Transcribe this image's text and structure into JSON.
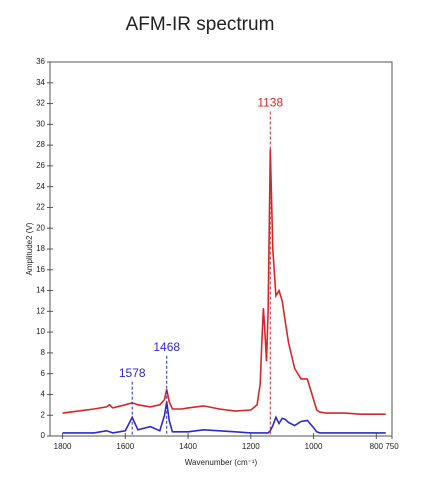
{
  "chart_data": {
    "type": "line",
    "title": "AFM-IR spectrum",
    "x_label": "Wavenumber (cm⁻¹)",
    "y_label": "Amplitude2 (V)",
    "x": [
      1800,
      1750,
      1700,
      1660,
      1650,
      1640,
      1600,
      1578,
      1560,
      1520,
      1490,
      1475,
      1468,
      1460,
      1450,
      1420,
      1400,
      1350,
      1300,
      1250,
      1200,
      1180,
      1170,
      1165,
      1160,
      1155,
      1150,
      1145,
      1138,
      1130,
      1120,
      1110,
      1100,
      1090,
      1080,
      1060,
      1040,
      1020,
      1000,
      990,
      980,
      960,
      900,
      850,
      800,
      770
    ],
    "series": [
      {
        "color": "#d62728",
        "values": [
          2.2,
          2.4,
          2.6,
          2.8,
          3.0,
          2.7,
          3.0,
          3.2,
          3.0,
          2.8,
          3.0,
          3.5,
          4.5,
          3.3,
          2.6,
          2.6,
          2.7,
          2.9,
          2.6,
          2.4,
          2.5,
          3.0,
          5,
          9,
          12.3,
          10,
          7.2,
          12,
          27.6,
          18,
          13.5,
          14,
          13,
          11,
          9,
          6.5,
          5.5,
          5.5,
          3.5,
          2.5,
          2.3,
          2.2,
          2.2,
          2.1,
          2.1,
          2.1
        ]
      },
      {
        "color": "#2b2bcf",
        "values": [
          0.3,
          0.3,
          0.3,
          0.5,
          0.4,
          0.3,
          0.5,
          1.8,
          0.6,
          0.9,
          0.5,
          2.0,
          3.3,
          1.5,
          0.4,
          0.4,
          0.4,
          0.6,
          0.5,
          0.4,
          0.3,
          0.3,
          0.3,
          0.3,
          0.3,
          0.3,
          0.3,
          0.3,
          0.5,
          1.0,
          1.8,
          1.2,
          1.7,
          1.6,
          1.3,
          1.0,
          1.4,
          1.5,
          0.8,
          0.4,
          0.3,
          0.3,
          0.3,
          0.3,
          0.3,
          0.3
        ]
      }
    ],
    "annotations": [
      {
        "label": "1138",
        "x": 1138,
        "y": 32,
        "color": "#d62728"
      },
      {
        "label": "1468",
        "x": 1468,
        "y": 8.5,
        "color": "#2b2bcf"
      },
      {
        "label": "1578",
        "x": 1578,
        "y": 6,
        "color": "#2b2bcf"
      }
    ],
    "xlim": [
      1840,
      750
    ],
    "ylim": [
      0,
      36
    ],
    "xticks": [
      1800,
      1600,
      1400,
      1200,
      1000,
      800,
      750
    ],
    "yticks": [
      0,
      2,
      4,
      6,
      8,
      10,
      12,
      14,
      16,
      18,
      20,
      22,
      24,
      26,
      28,
      30,
      32,
      34,
      36
    ]
  }
}
